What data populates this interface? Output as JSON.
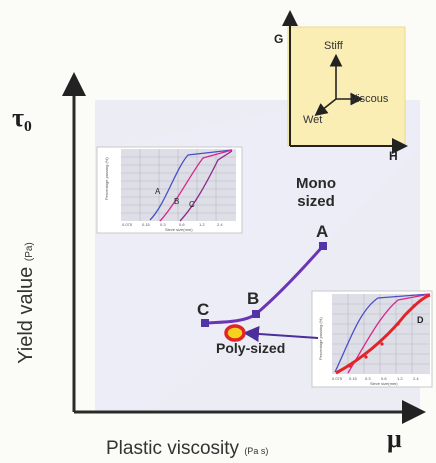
{
  "axes": {
    "y_symbol": "τ₀",
    "y_title": "Yield value",
    "y_unit": "(Pa)",
    "x_title": "Plastic viscosity",
    "x_unit": "(Pa s)",
    "x_symbol": "μ"
  },
  "property_inset": {
    "g_label": "G",
    "h_label": "H",
    "stiff_label": "Stiff",
    "viscous_label": "Viscous",
    "wet_label": "Wet"
  },
  "main_curve": {
    "points": [
      {
        "label": "C"
      },
      {
        "label": "B"
      },
      {
        "label": "A"
      }
    ],
    "mono_label": "Mono\nsized",
    "poly_label": "Poly-sized"
  },
  "left_inset": {
    "curve_labels": [
      "A",
      "B",
      "C"
    ]
  },
  "right_inset": {
    "curve_label": "D"
  },
  "colors": {
    "curve": "#6b35b5",
    "marker": "#5233a8",
    "shading": "#e4e6f3",
    "inset_bg": "#fbeeb4",
    "poly_ring": "#e1232a",
    "poly_fill": "#f7d21c"
  }
}
